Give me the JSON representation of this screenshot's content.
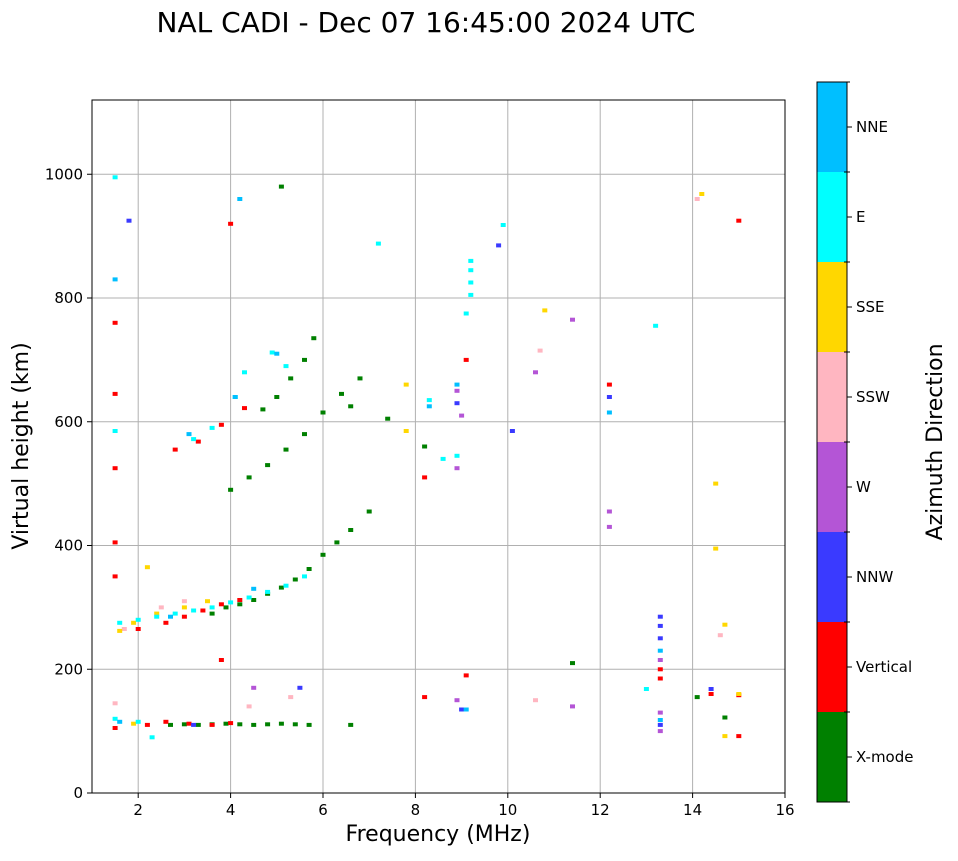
{
  "chart_data": {
    "type": "scatter",
    "title": "NAL CADI - Dec 07 16:45:00 2024 UTC",
    "xlabel": "Frequency (MHz)",
    "ylabel": "Virtual height (km)",
    "xlim": [
      1,
      16
    ],
    "ylim": [
      0,
      1120
    ],
    "xticks": [
      2,
      4,
      6,
      8,
      10,
      12,
      14,
      16
    ],
    "yticks": [
      0,
      200,
      400,
      600,
      800,
      1000
    ],
    "grid": true,
    "colorbar": {
      "label": "Azimuth Direction",
      "categories": [
        "X-mode",
        "Vertical",
        "NNW",
        "W",
        "SSW",
        "SSE",
        "E",
        "NNE"
      ]
    },
    "colors": {
      "X-mode": "#008000",
      "Vertical": "#ff0000",
      "NNW": "#3a3aff",
      "W": "#b455d6",
      "SSW": "#ffb6c1",
      "SSE": "#ffd700",
      "E": "#00ffff",
      "NNE": "#00bfff"
    },
    "series": [
      {
        "name": "X-mode",
        "points": [
          [
            2.7,
            110
          ],
          [
            3.0,
            111
          ],
          [
            3.3,
            110
          ],
          [
            3.6,
            111
          ],
          [
            3.9,
            112
          ],
          [
            4.2,
            111
          ],
          [
            4.5,
            110
          ],
          [
            4.8,
            111
          ],
          [
            5.1,
            112
          ],
          [
            5.4,
            111
          ],
          [
            5.7,
            110
          ],
          [
            6.6,
            110
          ],
          [
            3.6,
            290
          ],
          [
            3.9,
            300
          ],
          [
            4.2,
            305
          ],
          [
            4.5,
            312
          ],
          [
            4.8,
            322
          ],
          [
            5.1,
            332
          ],
          [
            5.4,
            345
          ],
          [
            5.7,
            362
          ],
          [
            6.0,
            385
          ],
          [
            6.3,
            405
          ],
          [
            6.6,
            425
          ],
          [
            7.0,
            455
          ],
          [
            4.0,
            490
          ],
          [
            4.4,
            510
          ],
          [
            4.8,
            530
          ],
          [
            5.2,
            555
          ],
          [
            5.6,
            580
          ],
          [
            6.0,
            615
          ],
          [
            6.4,
            645
          ],
          [
            6.8,
            670
          ],
          [
            4.7,
            620
          ],
          [
            5.0,
            640
          ],
          [
            5.3,
            670
          ],
          [
            5.6,
            700
          ],
          [
            5.8,
            735
          ],
          [
            5.1,
            980
          ],
          [
            14.1,
            155
          ],
          [
            14.7,
            122
          ],
          [
            11.4,
            210
          ],
          [
            8.2,
            560
          ],
          [
            6.6,
            625
          ],
          [
            7.4,
            605
          ]
        ]
      },
      {
        "name": "Vertical",
        "points": [
          [
            1.5,
            105
          ],
          [
            2.2,
            110
          ],
          [
            2.6,
            115
          ],
          [
            3.1,
            112
          ],
          [
            3.6,
            110
          ],
          [
            4.0,
            113
          ],
          [
            2.0,
            265
          ],
          [
            2.6,
            275
          ],
          [
            3.0,
            285
          ],
          [
            3.4,
            295
          ],
          [
            3.8,
            305
          ],
          [
            4.2,
            312
          ],
          [
            2.8,
            555
          ],
          [
            3.3,
            568
          ],
          [
            3.8,
            595
          ],
          [
            4.3,
            622
          ],
          [
            4.0,
            920
          ],
          [
            1.5,
            760
          ],
          [
            1.5,
            645
          ],
          [
            1.5,
            525
          ],
          [
            1.5,
            405
          ],
          [
            1.5,
            350
          ],
          [
            3.8,
            215
          ],
          [
            9.1,
            190
          ],
          [
            13.3,
            185
          ],
          [
            13.3,
            200
          ],
          [
            12.2,
            660
          ],
          [
            9.1,
            700
          ],
          [
            15.0,
            925
          ],
          [
            14.4,
            160
          ],
          [
            15.0,
            158
          ],
          [
            15.0,
            92
          ],
          [
            8.2,
            155
          ],
          [
            8.2,
            510
          ]
        ]
      },
      {
        "name": "NNW",
        "points": [
          [
            13.3,
            250
          ],
          [
            13.3,
            270
          ],
          [
            13.3,
            285
          ],
          [
            12.2,
            640
          ],
          [
            8.9,
            630
          ],
          [
            9.0,
            135
          ],
          [
            13.3,
            110
          ],
          [
            14.4,
            168
          ],
          [
            10.1,
            585
          ],
          [
            9.8,
            885
          ],
          [
            1.8,
            925
          ],
          [
            5.5,
            170
          ],
          [
            3.2,
            110
          ]
        ]
      },
      {
        "name": "W",
        "points": [
          [
            13.3,
            130
          ],
          [
            13.3,
            100
          ],
          [
            13.3,
            215
          ],
          [
            12.2,
            430
          ],
          [
            12.2,
            455
          ],
          [
            8.9,
            650
          ],
          [
            9.0,
            610
          ],
          [
            8.9,
            525
          ],
          [
            10.6,
            680
          ],
          [
            11.4,
            765
          ],
          [
            11.4,
            140
          ],
          [
            8.9,
            150
          ],
          [
            4.5,
            170
          ]
        ]
      },
      {
        "name": "SSW",
        "points": [
          [
            1.5,
            145
          ],
          [
            1.7,
            265
          ],
          [
            2.5,
            300
          ],
          [
            3.0,
            310
          ],
          [
            14.1,
            960
          ],
          [
            10.7,
            715
          ],
          [
            10.6,
            150
          ],
          [
            14.6,
            255
          ],
          [
            4.4,
            140
          ],
          [
            5.3,
            155
          ]
        ]
      },
      {
        "name": "SSE",
        "points": [
          [
            1.6,
            262
          ],
          [
            1.9,
            275
          ],
          [
            2.4,
            290
          ],
          [
            3.0,
            300
          ],
          [
            3.5,
            310
          ],
          [
            14.2,
            968
          ],
          [
            14.5,
            500
          ],
          [
            14.5,
            395
          ],
          [
            14.7,
            272
          ],
          [
            15.0,
            160
          ],
          [
            14.7,
            92
          ],
          [
            7.8,
            660
          ],
          [
            10.8,
            780
          ],
          [
            7.8,
            585
          ],
          [
            2.2,
            365
          ],
          [
            1.9,
            112
          ]
        ]
      },
      {
        "name": "E",
        "points": [
          [
            1.6,
            275
          ],
          [
            2.0,
            280
          ],
          [
            2.4,
            285
          ],
          [
            2.8,
            290
          ],
          [
            3.2,
            295
          ],
          [
            3.6,
            300
          ],
          [
            4.0,
            308
          ],
          [
            4.4,
            316
          ],
          [
            4.8,
            325
          ],
          [
            5.2,
            335
          ],
          [
            5.6,
            350
          ],
          [
            3.2,
            572
          ],
          [
            3.6,
            590
          ],
          [
            4.1,
            640
          ],
          [
            4.3,
            680
          ],
          [
            4.9,
            712
          ],
          [
            5.2,
            690
          ],
          [
            9.2,
            805
          ],
          [
            9.2,
            825
          ],
          [
            9.2,
            845
          ],
          [
            9.2,
            860
          ],
          [
            9.1,
            775
          ],
          [
            9.9,
            918
          ],
          [
            8.3,
            635
          ],
          [
            8.6,
            540
          ],
          [
            8.9,
            545
          ],
          [
            13.2,
            755
          ],
          [
            13.0,
            168
          ],
          [
            2.3,
            90
          ],
          [
            2.0,
            115
          ],
          [
            1.5,
            995
          ],
          [
            1.5,
            585
          ],
          [
            7.2,
            888
          ],
          [
            1.5,
            120
          ]
        ]
      },
      {
        "name": "NNE",
        "points": [
          [
            8.3,
            625
          ],
          [
            12.2,
            615
          ],
          [
            13.3,
            230
          ],
          [
            13.3,
            118
          ],
          [
            9.1,
            135
          ],
          [
            4.1,
            640
          ],
          [
            4.2,
            960
          ],
          [
            5.0,
            710
          ],
          [
            1.5,
            830
          ],
          [
            1.6,
            115
          ],
          [
            3.1,
            580
          ],
          [
            8.9,
            660
          ],
          [
            2.7,
            285
          ],
          [
            4.5,
            330
          ]
        ]
      }
    ]
  }
}
